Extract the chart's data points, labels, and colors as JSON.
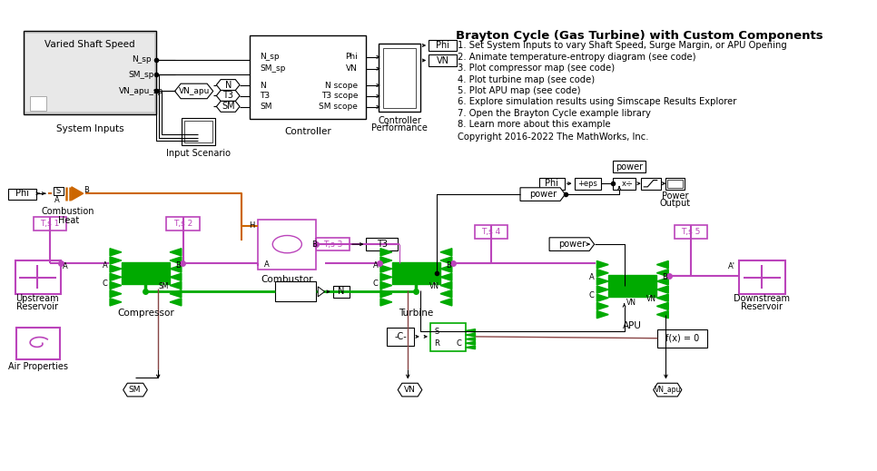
{
  "title": "Brayton Cycle (Gas Turbine) with Custom Components",
  "bg_color": "#ffffff",
  "instructions": [
    "1. Set System Inputs to vary Shaft Speed, Surge Margin, or APU Opening",
    "2. Animate temperature-entropy diagram (see code)",
    "3. Plot compressor map (see code)",
    "4. Plot turbine map (see code)",
    "5. Plot APU map (see code)",
    "6. Explore simulation results using Simscape Results Explorer",
    "7. Open the Brayton Cycle example library",
    "8. Learn more about this example"
  ],
  "copyright": "Copyright 2016-2022 The MathWorks, Inc.",
  "colors": {
    "green": "#00aa00",
    "orange": "#cc6600",
    "magenta": "#bb44bb",
    "brown": "#884444",
    "black": "#000000",
    "gray": "#aaaaaa",
    "light_gray": "#cccccc"
  }
}
